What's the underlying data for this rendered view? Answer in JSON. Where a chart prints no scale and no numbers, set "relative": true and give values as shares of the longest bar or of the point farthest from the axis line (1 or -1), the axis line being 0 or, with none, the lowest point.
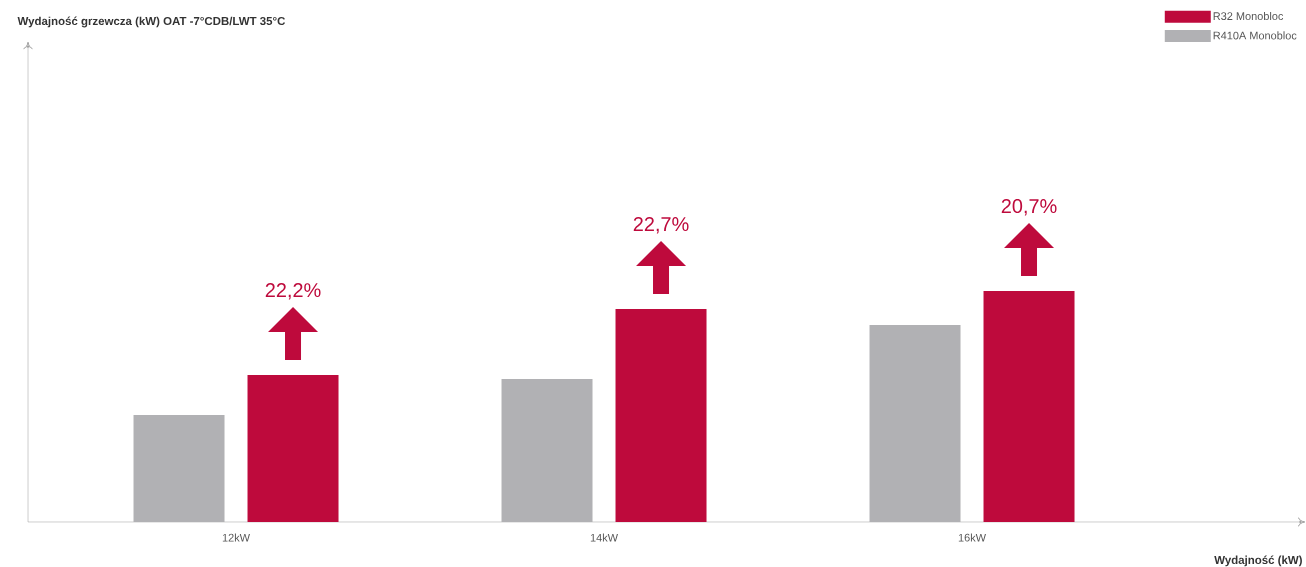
{
  "chart_data": {
    "type": "bar",
    "relative": true,
    "xlabel": "Wydajność (kW)",
    "categories": [
      "12kW",
      "14kW",
      "16kW"
    ],
    "series": [
      {
        "name": "R410A Monobloc",
        "color": "#b1b1b4",
        "values": [
          0.463,
          0.619,
          0.853
        ]
      },
      {
        "name": "R32 Monobloc",
        "color": "#be0a3c",
        "values": [
          0.636,
          0.922,
          1
        ]
      }
    ],
    "annotations": [
      "22,2%",
      "22,7%",
      "20,7%",
      "Wydajność grzewcza (kW) OAT -7°CDB/LWT 35°C"
    ],
    "legend": "top right"
  }
}
